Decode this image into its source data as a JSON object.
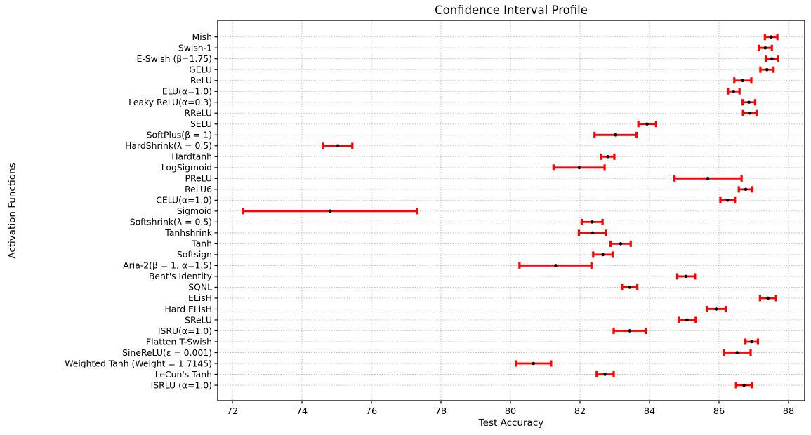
{
  "chart_data": {
    "type": "scatter",
    "subtype": "horizontal-errorbar-interval",
    "title": "Confidence Interval Profile",
    "xlabel": "Test Accuracy",
    "ylabel": "Activation Functions",
    "xlim": [
      71.576,
      88.465
    ],
    "x_ticks": [
      72,
      74,
      76,
      78,
      80,
      82,
      84,
      86,
      88
    ],
    "grid": true,
    "legend": false,
    "bar_color": "#ff0000",
    "marker_color": "#000000",
    "grid_color": "#b0b0b0",
    "spine_color": "#000000",
    "rows": [
      {
        "label": "Mish",
        "low": 87.32,
        "center": 87.5,
        "high": 87.68
      },
      {
        "label": "Swish-1",
        "low": 87.15,
        "center": 87.33,
        "high": 87.52
      },
      {
        "label": "E-Swish (β=1.75)",
        "low": 87.35,
        "center": 87.52,
        "high": 87.69
      },
      {
        "label": "GELU",
        "low": 87.19,
        "center": 87.38,
        "high": 87.57
      },
      {
        "label": "ReLU",
        "low": 86.44,
        "center": 86.68,
        "high": 86.93
      },
      {
        "label": "ELU(α=1.0)",
        "low": 86.26,
        "center": 86.42,
        "high": 86.59
      },
      {
        "label": "Leaky ReLU(α=0.3)",
        "low": 86.68,
        "center": 86.86,
        "high": 87.04
      },
      {
        "label": "RReLU",
        "low": 86.69,
        "center": 86.88,
        "high": 87.08
      },
      {
        "label": "SELU",
        "low": 83.68,
        "center": 83.93,
        "high": 84.19
      },
      {
        "label": "SoftPlus(β = 1)",
        "low": 82.42,
        "center": 83.02,
        "high": 83.63
      },
      {
        "label": "HardShrink(λ = 0.5)",
        "low": 74.61,
        "center": 75.03,
        "high": 75.45
      },
      {
        "label": "Hardtanh",
        "low": 82.61,
        "center": 82.8,
        "high": 82.99
      },
      {
        "label": "LogSigmoid",
        "low": 81.24,
        "center": 81.98,
        "high": 82.71
      },
      {
        "label": "PReLU",
        "low": 84.72,
        "center": 85.68,
        "high": 86.65
      },
      {
        "label": "ReLU6",
        "low": 86.57,
        "center": 86.77,
        "high": 86.96
      },
      {
        "label": "CELU(α=1.0)",
        "low": 86.04,
        "center": 86.25,
        "high": 86.46
      },
      {
        "label": "Sigmoid",
        "low": 72.3,
        "center": 74.81,
        "high": 77.32
      },
      {
        "label": "Softshrink(λ = 0.5)",
        "low": 82.05,
        "center": 82.35,
        "high": 82.65
      },
      {
        "label": "Tanhshrink",
        "low": 81.97,
        "center": 82.36,
        "high": 82.75
      },
      {
        "label": "Tanh",
        "low": 82.88,
        "center": 83.17,
        "high": 83.46
      },
      {
        "label": "Softsign",
        "low": 82.38,
        "center": 82.66,
        "high": 82.94
      },
      {
        "label": "Aria-2(β = 1, α=1.5)",
        "low": 80.26,
        "center": 81.3,
        "high": 82.33
      },
      {
        "label": "Bent's Identity",
        "low": 84.8,
        "center": 85.05,
        "high": 85.31
      },
      {
        "label": "SQNL",
        "low": 83.21,
        "center": 83.43,
        "high": 83.65
      },
      {
        "label": "ELisH",
        "low": 87.18,
        "center": 87.41,
        "high": 87.64
      },
      {
        "label": "Hard ELisH",
        "low": 85.65,
        "center": 85.92,
        "high": 86.19
      },
      {
        "label": "SReLU",
        "low": 84.84,
        "center": 85.08,
        "high": 85.33
      },
      {
        "label": "ISRU(α=1.0)",
        "low": 82.97,
        "center": 83.43,
        "high": 83.89
      },
      {
        "label": "Flatten T-Swish",
        "low": 86.76,
        "center": 86.94,
        "high": 87.12
      },
      {
        "label": "SineReLU(ε = 0.001)",
        "low": 86.14,
        "center": 86.52,
        "high": 86.91
      },
      {
        "label": "Weighted Tanh (Weight = 1.7145)",
        "low": 80.16,
        "center": 80.66,
        "high": 81.17
      },
      {
        "label": "LeCun's Tanh",
        "low": 82.48,
        "center": 82.72,
        "high": 82.97
      },
      {
        "label": "ISRLU (α=1.0)",
        "low": 86.49,
        "center": 86.72,
        "high": 86.95
      }
    ]
  }
}
